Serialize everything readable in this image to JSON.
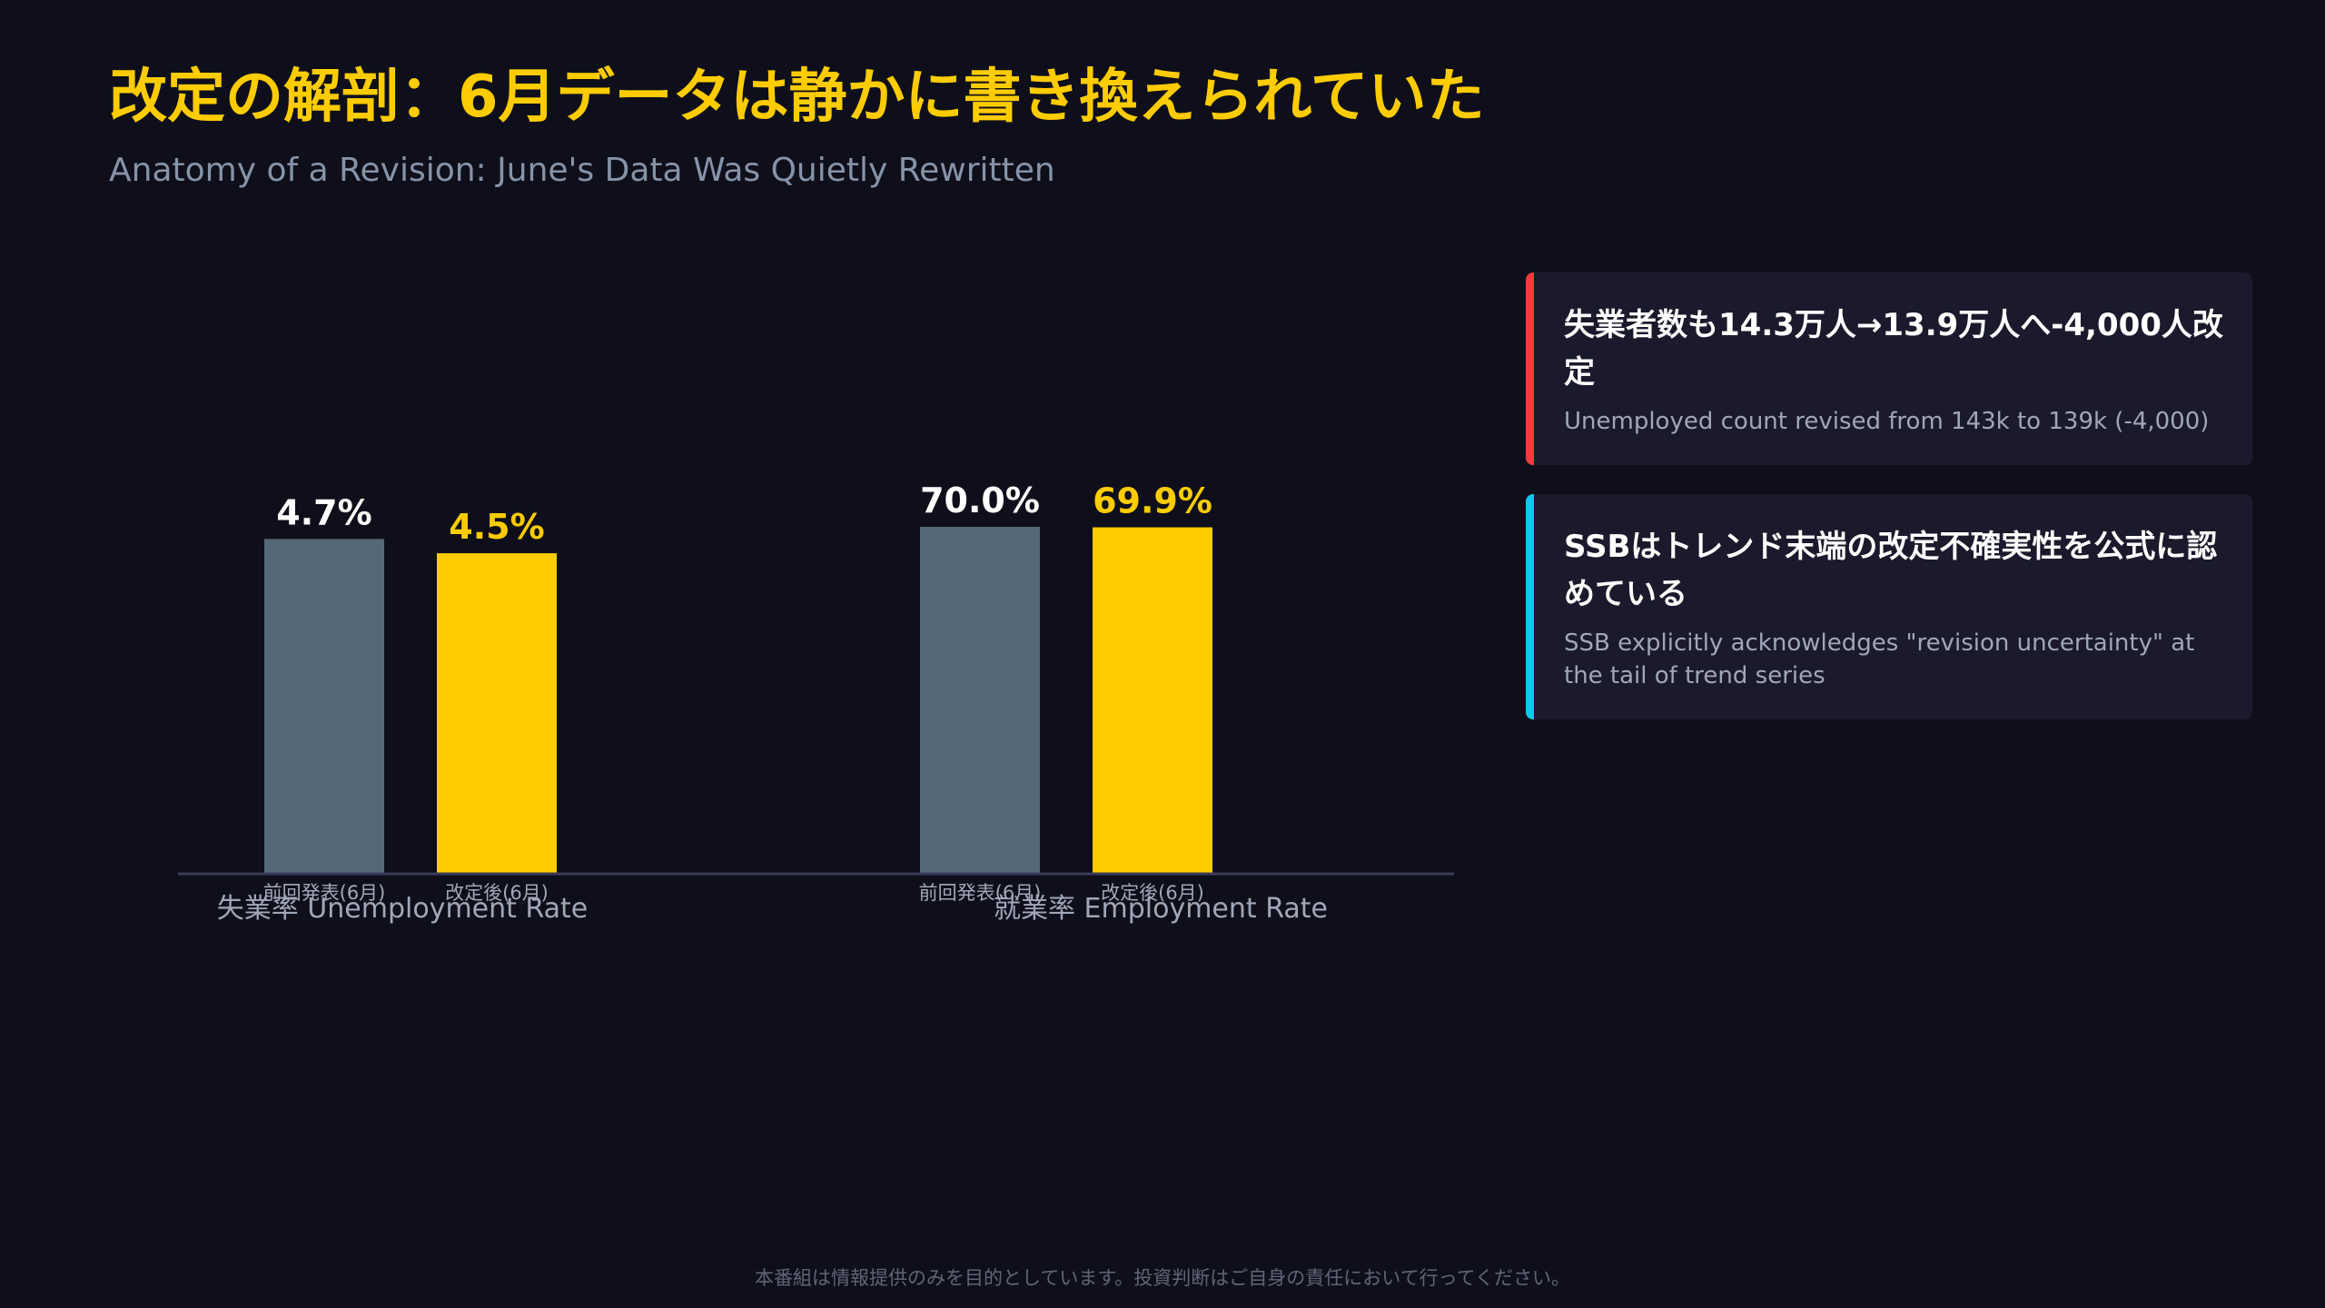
{
  "header": {
    "title": "改定の解剖：6月データは静かに書き換えられていた",
    "subtitle": "Anatomy of a Revision: June's Data Was Quietly Rewritten"
  },
  "colors": {
    "background": "#0f0f1b",
    "accent": "#ffcc00",
    "previous_bar": "#566878",
    "axis": "#3a3a5a",
    "card_bg": "#1a1a2c",
    "card_red": "#f03c3c",
    "card_cyan": "#16c5ee"
  },
  "chart_data": [
    {
      "type": "bar",
      "title": "失業率 Unemployment Rate",
      "categories": [
        "前回発表(6月)",
        "改定後(6月)"
      ],
      "values": [
        4.7,
        4.5
      ],
      "value_labels": [
        "4.7%",
        "4.5%"
      ],
      "colors": [
        "#566878",
        "#ffcc00"
      ],
      "ylim": [
        0,
        5.1
      ]
    },
    {
      "type": "bar",
      "title": "就業率 Employment Rate",
      "categories": [
        "前回発表(6月)",
        "改定後(6月)"
      ],
      "values": [
        70.0,
        69.9
      ],
      "value_labels": [
        "70.0%",
        "69.9%"
      ],
      "colors": [
        "#566878",
        "#ffcc00"
      ],
      "ylim": [
        0,
        73.3
      ]
    }
  ],
  "cards": [
    {
      "title": "失業者数も14.3万人→13.9万人へ-4,000人改定",
      "body": "Unemployed count revised from 143k to 139k (-4,000)",
      "accent": "#f03c3c"
    },
    {
      "title": "SSBはトレンド末端の改定不確実性を公式に認めている",
      "body": "SSB explicitly acknowledges \"revision uncertainty\" at the tail of trend series",
      "accent": "#16c5ee"
    }
  ],
  "footer": {
    "disclaimer": "本番組は情報提供のみを目的としています。投資判断はご自身の責任において行ってください。"
  }
}
